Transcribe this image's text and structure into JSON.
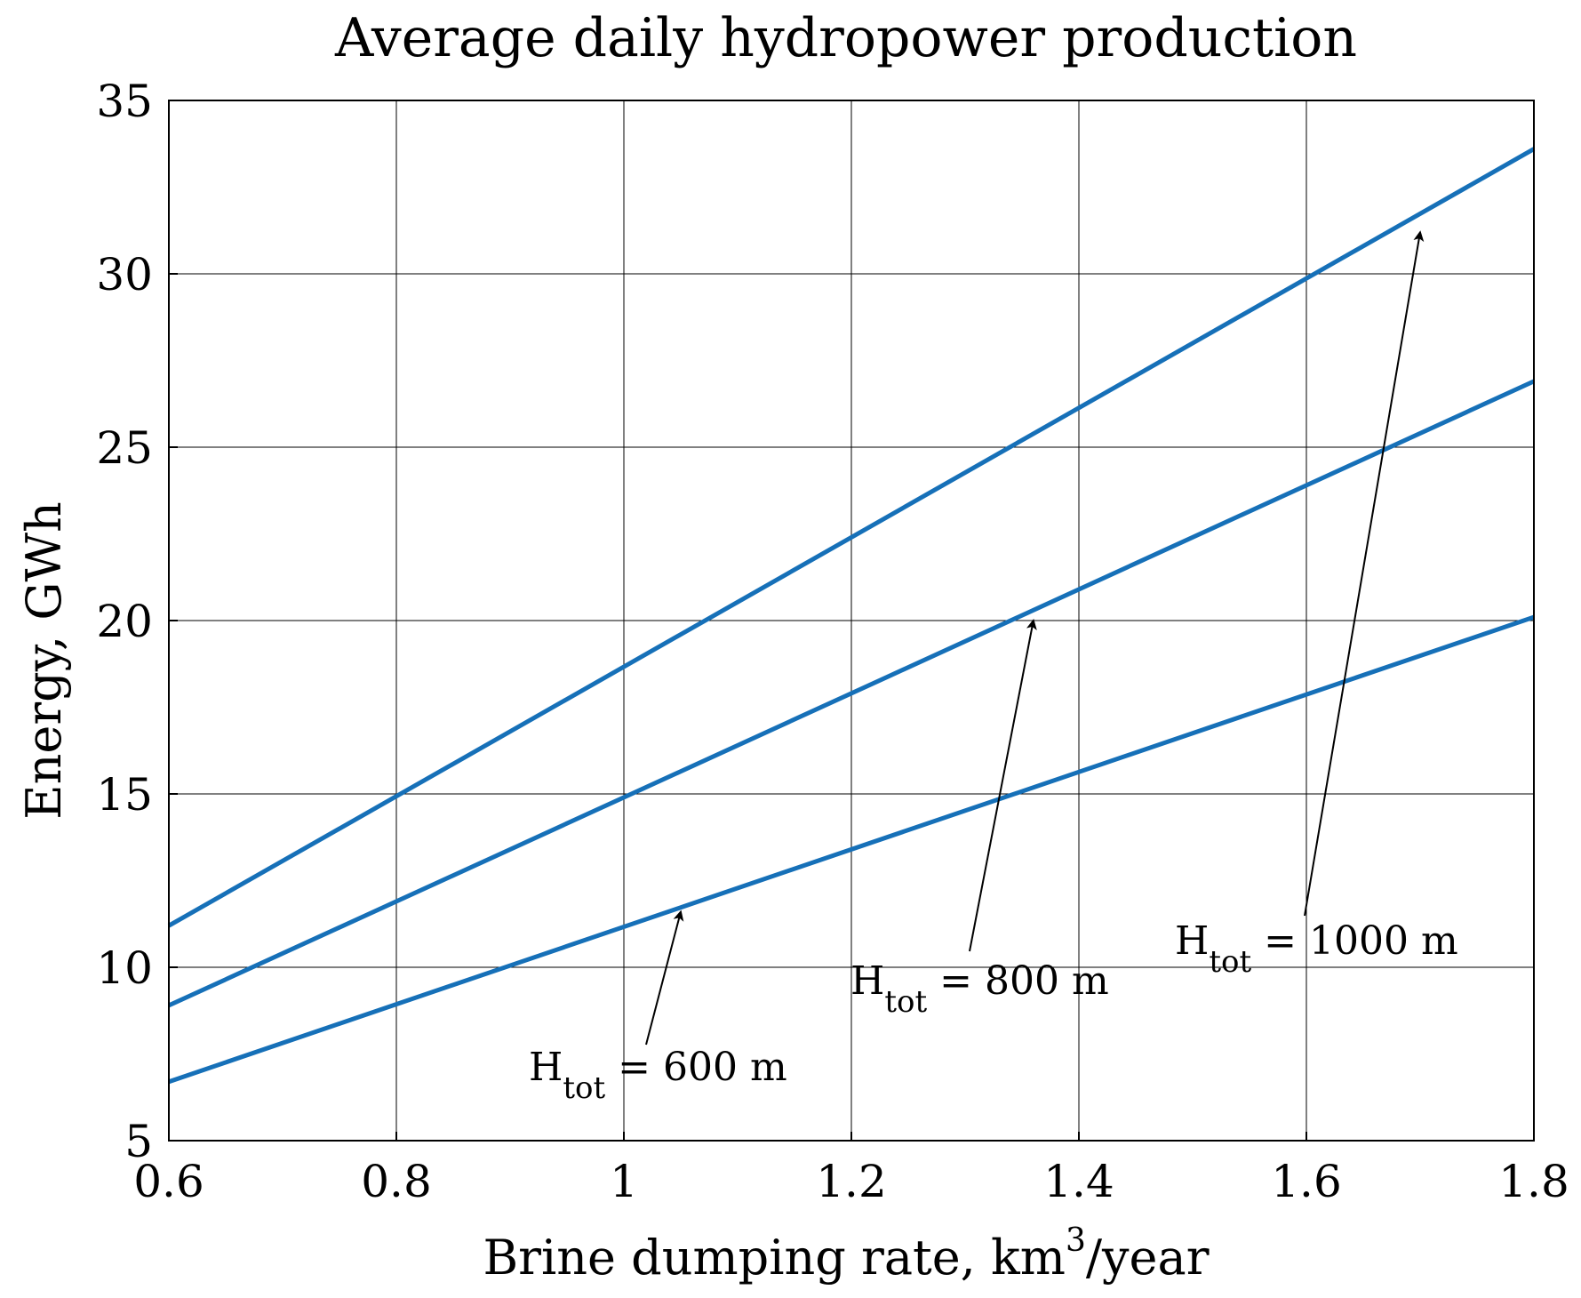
{
  "chart_data": {
    "type": "line",
    "title": "Average daily hydropower production",
    "xlabel_prefix": "Brine dumping rate, km",
    "xlabel_sup": "3",
    "xlabel_suffix": "/year",
    "ylabel": "Energy, GWh",
    "xlim": [
      0.6,
      1.8
    ],
    "ylim": [
      5,
      35
    ],
    "xticks": [
      0.6,
      0.8,
      1.0,
      1.2,
      1.4,
      1.6,
      1.8
    ],
    "xtick_labels": [
      "0.6",
      "0.8",
      "1",
      "1.2",
      "1.4",
      "1.6",
      "1.8"
    ],
    "yticks": [
      5,
      10,
      15,
      20,
      25,
      30,
      35
    ],
    "ytick_labels": [
      "5",
      "10",
      "15",
      "20",
      "25",
      "30",
      "35"
    ],
    "grid": true,
    "line_color": "#1670B8",
    "series": [
      {
        "name": "H_tot = 600 m",
        "x": [
          0.6,
          1.8
        ],
        "y": [
          6.7,
          20.1
        ]
      },
      {
        "name": "H_tot = 800 m",
        "x": [
          0.6,
          1.8
        ],
        "y": [
          8.9,
          26.9
        ]
      },
      {
        "name": "H_tot = 1000 m",
        "x": [
          0.6,
          1.8
        ],
        "y": [
          11.2,
          33.6
        ]
      }
    ],
    "annotations": [
      {
        "main": "H",
        "sub": "tot",
        "rest": " = 600 m",
        "arrow_to_x": 1.05,
        "arrow_to_y": 11.6
      },
      {
        "main": "H",
        "sub": "tot",
        "rest": " = 800 m",
        "arrow_to_x": 1.36,
        "arrow_to_y": 20.0
      },
      {
        "main": "H",
        "sub": "tot",
        "rest": " = 1000 m",
        "arrow_to_x": 1.7,
        "arrow_to_y": 31.2
      }
    ]
  }
}
